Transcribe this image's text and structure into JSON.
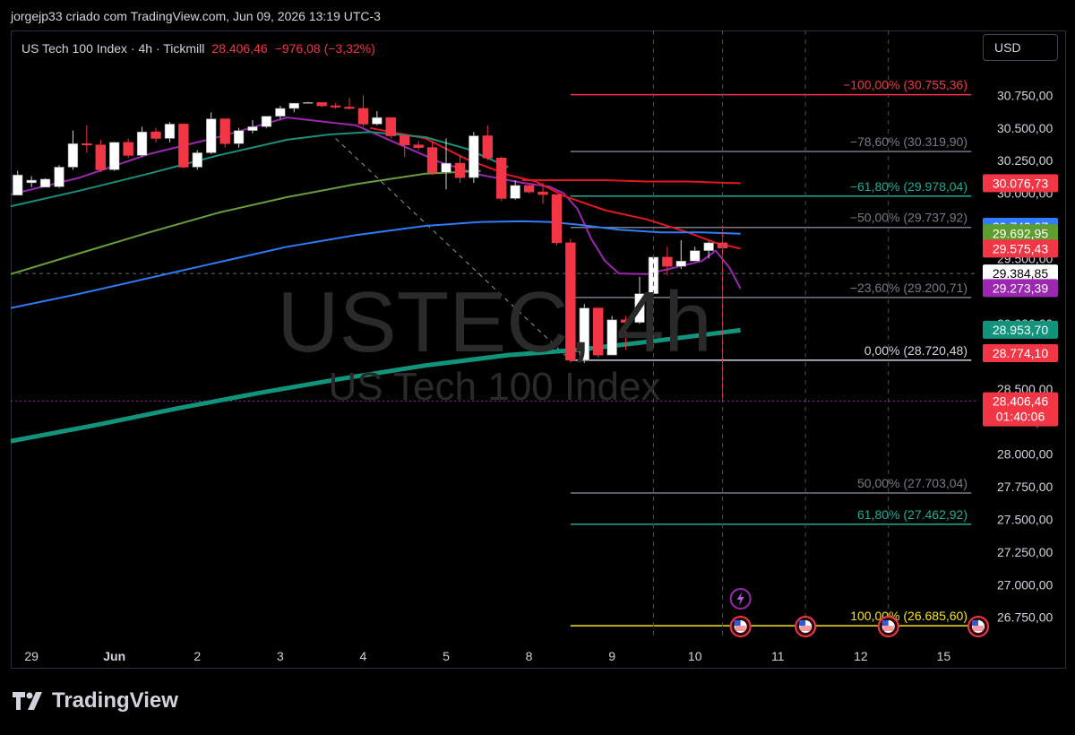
{
  "header": {
    "credit": "jorgejp33 criado com TradingView.com, Jun 09, 2026 13:19 UTC-3"
  },
  "symbol": {
    "name": "US Tech 100 Index · 4h · Tickmill",
    "price": "28.406,46",
    "change": "−976,08 (−3,32%)"
  },
  "currency_button": "USD",
  "watermark": {
    "ticker": "USTEC, 4h",
    "description": "US Tech 100 Index"
  },
  "footer": {
    "brand": "TradingView"
  },
  "colors": {
    "up": "#ffffff",
    "down": "#f23645",
    "accent": "#2962ff",
    "ema_fast": "#9c27b0",
    "ema_red": "#e5171c",
    "ema_blue": "#2f7dfa",
    "ema_light_green": "#6a9e3a",
    "ema_green": "#1b8f7a",
    "ema_thick": "#12937b"
  },
  "chart_data": {
    "type": "candlestick",
    "title": "US Tech 100 Index · 4h · Tickmill",
    "ylim": [
      26590,
      31000
    ],
    "y_ticks": [
      {
        "value": 30750,
        "label": "30.750,00"
      },
      {
        "value": 30500,
        "label": "30.500,00"
      },
      {
        "value": 30250,
        "label": "30.250,00"
      },
      {
        "value": 30000,
        "label": "30.000,00"
      },
      {
        "value": 29500,
        "label": "29.500,00"
      },
      {
        "value": 29000,
        "label": "29.000,00"
      },
      {
        "value": 28500,
        "label": "28.500,00"
      },
      {
        "value": 28250,
        "label": "28.250,00"
      },
      {
        "value": 28000,
        "label": "28.000,00"
      },
      {
        "value": 27750,
        "label": "27.750,00"
      },
      {
        "value": 27500,
        "label": "27.500,00"
      },
      {
        "value": 27250,
        "label": "27.250,00"
      },
      {
        "value": 27000,
        "label": "27.000,00"
      },
      {
        "value": 26750,
        "label": "26.750,00"
      }
    ],
    "x_ticks": [
      {
        "bar": 1.5,
        "label": "29"
      },
      {
        "bar": 7.5,
        "label": "Jun",
        "bold": true
      },
      {
        "bar": 13.5,
        "label": "2"
      },
      {
        "bar": 19.5,
        "label": "3"
      },
      {
        "bar": 25.5,
        "label": "4"
      },
      {
        "bar": 31.5,
        "label": "5"
      },
      {
        "bar": 37.5,
        "label": "8"
      },
      {
        "bar": 43.5,
        "label": "9"
      },
      {
        "bar": 49.5,
        "label": "10"
      },
      {
        "bar": 55.5,
        "label": "11"
      },
      {
        "bar": 61.5,
        "label": "12"
      },
      {
        "bar": 67.5,
        "label": "15"
      }
    ],
    "vlines": [
      46.5,
      51.5,
      57.5,
      63.5
    ],
    "bar_count": 70,
    "candles": [
      [
        29985,
        30172,
        30140,
        30080
      ],
      [
        30080,
        30130,
        30100,
        30046
      ],
      [
        30046,
        30115,
        30108,
        30050
      ],
      [
        30050,
        30215,
        30200,
        30040
      ],
      [
        30200,
        30480,
        30380,
        30180
      ],
      [
        30380,
        30520,
        30370,
        30310
      ],
      [
        30370,
        30410,
        30180,
        30160
      ],
      [
        30180,
        30395,
        30390,
        30170
      ],
      [
        30390,
        30420,
        30290,
        30270
      ],
      [
        30290,
        30510,
        30470,
        30280
      ],
      [
        30470,
        30500,
        30420,
        30390
      ],
      [
        30420,
        30545,
        30530,
        30390
      ],
      [
        30530,
        30520,
        30200,
        30190
      ],
      [
        30200,
        30330,
        30310,
        30180
      ],
      [
        30310,
        30620,
        30570,
        30300
      ],
      [
        30570,
        30530,
        30380,
        30350
      ],
      [
        30380,
        30500,
        30480,
        30350
      ],
      [
        30480,
        30560,
        30510,
        30460
      ],
      [
        30510,
        30530,
        30590,
        30500
      ],
      [
        30590,
        30670,
        30650,
        30570
      ],
      [
        30650,
        30690,
        30690,
        30620
      ],
      [
        30690,
        30700,
        30695,
        30690
      ],
      [
        30695,
        30680,
        30670,
        30660
      ],
      [
        30670,
        30690,
        30660,
        30650
      ],
      [
        30660,
        30730,
        30650,
        30640
      ],
      [
        30650,
        30750,
        30530,
        30510
      ],
      [
        30530,
        30630,
        30580,
        30520
      ],
      [
        30580,
        30570,
        30440,
        30420
      ],
      [
        30440,
        30420,
        30370,
        30280
      ],
      [
        30370,
        30400,
        30350,
        30330
      ],
      [
        30350,
        30400,
        30160,
        30140
      ],
      [
        30160,
        30420,
        30230,
        30030
      ],
      [
        30230,
        30290,
        30120,
        30080
      ],
      [
        30120,
        30470,
        30440,
        30080
      ],
      [
        30440,
        30520,
        30270,
        30250
      ],
      [
        30270,
        30280,
        29960,
        29940
      ],
      [
        29960,
        30100,
        30060,
        29950
      ],
      [
        30060,
        30040,
        30010,
        30000
      ],
      [
        30010,
        30080,
        29990,
        29920
      ],
      [
        29990,
        29980,
        29620,
        29600
      ],
      [
        29620,
        29650,
        28720,
        28700
      ],
      [
        28720,
        29150,
        29120,
        28700
      ],
      [
        29120,
        29070,
        28760,
        28740
      ],
      [
        28760,
        29060,
        29030,
        28800
      ],
      [
        29030,
        29060,
        29010,
        28800
      ],
      [
        29010,
        29360,
        29230,
        29000
      ],
      [
        29230,
        29490,
        29510,
        29390
      ],
      [
        29510,
        29590,
        29440,
        29370
      ],
      [
        29440,
        29640,
        29480,
        29420
      ],
      [
        29480,
        29590,
        29560,
        29480
      ],
      [
        29560,
        29630,
        29620,
        29500
      ],
      [
        29620,
        29750,
        29580,
        28406
      ]
    ],
    "candles_start_bar": 0,
    "series": [
      {
        "color": "#9c27b0",
        "width": 2,
        "points": [
          [
            0,
            29990
          ],
          [
            5,
            30120
          ],
          [
            10,
            30300
          ],
          [
            15,
            30430
          ],
          [
            20,
            30580
          ],
          [
            25,
            30520
          ],
          [
            28,
            30380
          ],
          [
            31,
            30240
          ],
          [
            34,
            30140
          ],
          [
            37,
            30080
          ],
          [
            39,
            30050
          ],
          [
            40,
            30000
          ],
          [
            41,
            29880
          ],
          [
            42,
            29650
          ],
          [
            43,
            29480
          ],
          [
            44,
            29385
          ],
          [
            46,
            29380
          ],
          [
            48,
            29430
          ],
          [
            50,
            29480
          ],
          [
            51,
            29560
          ],
          [
            52,
            29430
          ],
          [
            52.8,
            29270
          ]
        ]
      },
      {
        "color": "#e5171c",
        "width": 2,
        "points": [
          [
            26,
            30500
          ],
          [
            30,
            30420
          ],
          [
            33,
            30260
          ],
          [
            36,
            30140
          ],
          [
            38,
            30090
          ],
          [
            40,
            29980
          ],
          [
            43,
            29870
          ],
          [
            46,
            29800
          ],
          [
            49,
            29700
          ],
          [
            51,
            29620
          ],
          [
            52.8,
            29575
          ]
        ]
      },
      {
        "color": "#e5171c",
        "width": 2,
        "points": [
          [
            37,
            30100
          ],
          [
            40,
            30100
          ],
          [
            43,
            30100
          ],
          [
            46,
            30090
          ],
          [
            49,
            30090
          ],
          [
            51,
            30082
          ],
          [
            52.8,
            30077
          ]
        ]
      },
      {
        "color": "#1b8f7a",
        "width": 2,
        "points": [
          [
            0,
            29900
          ],
          [
            5,
            30020
          ],
          [
            10,
            30150
          ],
          [
            15,
            30290
          ],
          [
            20,
            30410
          ],
          [
            23,
            30450
          ],
          [
            26,
            30470
          ],
          [
            30,
            30430
          ],
          [
            33,
            30340
          ],
          [
            36,
            30200
          ]
        ]
      },
      {
        "color": "#6a9e3a",
        "width": 2,
        "points": [
          [
            0,
            29380
          ],
          [
            5,
            29540
          ],
          [
            10,
            29700
          ],
          [
            15,
            29850
          ],
          [
            20,
            29970
          ],
          [
            25,
            30070
          ],
          [
            30,
            30150
          ],
          [
            34,
            30170
          ]
        ]
      },
      {
        "color": "#2f7dfa",
        "width": 2,
        "points": [
          [
            0,
            29120
          ],
          [
            5,
            29230
          ],
          [
            10,
            29350
          ],
          [
            15,
            29470
          ],
          [
            20,
            29590
          ],
          [
            25,
            29680
          ],
          [
            30,
            29750
          ],
          [
            34,
            29780
          ],
          [
            37,
            29785
          ],
          [
            39,
            29780
          ],
          [
            41,
            29760
          ],
          [
            44,
            29720
          ],
          [
            47,
            29700
          ],
          [
            50,
            29700
          ],
          [
            52.8,
            29690
          ]
        ]
      },
      {
        "color": "#12937b",
        "width": 5,
        "points": [
          [
            0,
            28100
          ],
          [
            6,
            28220
          ],
          [
            12,
            28350
          ],
          [
            18,
            28470
          ],
          [
            24,
            28580
          ],
          [
            30,
            28680
          ],
          [
            36,
            28760
          ],
          [
            41,
            28800
          ],
          [
            46,
            28860
          ],
          [
            52.8,
            28950
          ]
        ]
      }
    ],
    "diagonal": {
      "from": [
        23.5,
        30420
      ],
      "to": [
        40.5,
        28720
      ]
    },
    "fib_levels": [
      {
        "value": 30755.36,
        "label": "−100,00% (30.755,36)",
        "color": "#f23645"
      },
      {
        "value": 30319.9,
        "label": "−78,60% (30.319,90)",
        "color": "#787b86"
      },
      {
        "value": 29978.04,
        "label": "−61,80% (29.978,04)",
        "color": "#22ab94"
      },
      {
        "value": 29737.92,
        "label": "−50,00% (29.737,92)",
        "color": "#787b86"
      },
      {
        "value": 29200.71,
        "label": "−23,60% (29.200,71)",
        "color": "#787b86"
      },
      {
        "value": 28720.48,
        "label": "0,00% (28.720,48)",
        "color": "#d1d4dc"
      },
      {
        "value": 27703.04,
        "label": "50,00% (27.703,04)",
        "color": "#787b86"
      },
      {
        "value": 27462.92,
        "label": "61,80% (27.462,92)",
        "color": "#22ab94"
      },
      {
        "value": 26685.6,
        "label": "100,00% (26.685,60)",
        "color": "#f5e61b"
      }
    ],
    "fib_start_bar": 40.5,
    "fib_end_bar": 69.5,
    "price_labels": [
      {
        "value": 30076.73,
        "label": "30.076,73",
        "bg": "#f23645",
        "fg": "#ffffff"
      },
      {
        "value": 29742.97,
        "label": "29.742,97",
        "bg": "#2f7dfa",
        "fg": "#ffffff"
      },
      {
        "value": 29692.95,
        "label": "29.692,95",
        "bg": "#5e9e2f",
        "fg": "#ffffff"
      },
      {
        "value": 29575.43,
        "label": "29.575,43",
        "bg": "#f23645",
        "fg": "#ffffff"
      },
      {
        "value": 29384.85,
        "label": "29.384,85",
        "bg": "#ffffff",
        "fg": "#000000"
      },
      {
        "value": 29273.39,
        "label": "29.273,39",
        "bg": "#9c27b0",
        "fg": "#ffffff"
      },
      {
        "value": 28953.7,
        "label": "28.953,70",
        "bg": "#12937b",
        "fg": "#ffffff"
      },
      {
        "value": 28774.1,
        "label": "28.774,10",
        "bg": "#f23645",
        "fg": "#ffffff"
      }
    ],
    "last_price": {
      "value": 28406.46,
      "label": "28.406,46",
      "countdown": "01:40:06",
      "bg": "#f23645"
    },
    "crosshair_value": 29384.85,
    "events": [
      {
        "bar": 52.8,
        "type": "flag"
      },
      {
        "bar": 57.5,
        "type": "flag"
      },
      {
        "bar": 63.5,
        "type": "flag"
      },
      {
        "bar": 70,
        "type": "flag"
      }
    ],
    "lightning_bar": 52.8
  }
}
